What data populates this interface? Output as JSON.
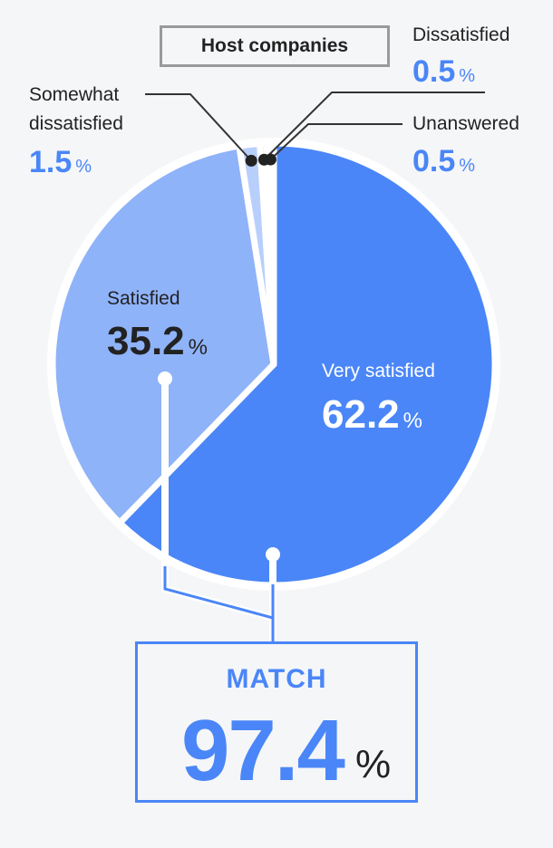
{
  "chart_data": {
    "type": "pie",
    "title": "Host companies",
    "slices": [
      {
        "label": "Very satisfied",
        "value": 62.2,
        "color": "#4a86f7"
      },
      {
        "label": "Satisfied",
        "value": 35.2,
        "color": "#8fb3f9"
      },
      {
        "label": "Somewhat dissatisfied",
        "value": 1.5,
        "color": "#b8cffb"
      },
      {
        "label": "Dissatisfied",
        "value": 0.5,
        "color": "#dfe9fd"
      },
      {
        "label": "Unanswered",
        "value": 0.5,
        "color": "#ffffff"
      }
    ],
    "percent_symbol": "%",
    "summary": {
      "label": "MATCH",
      "value": "97.4",
      "symbol": "%"
    }
  },
  "labels": {
    "very_satisfied": {
      "name": "Very satisfied",
      "pct": "62.2"
    },
    "satisfied": {
      "name": "Satisfied",
      "pct": "35.2"
    },
    "somewhat_line1": "Somewhat",
    "somewhat_line2": "dissatisfied",
    "somewhat_pct": "1.5",
    "dissatisfied": {
      "name": "Dissatisfied",
      "pct": "0.5"
    },
    "unanswered": {
      "name": "Unanswered",
      "pct": "0.5"
    }
  },
  "colors": {
    "accent": "#4a86f7",
    "text": "#222222",
    "leader": "#333333"
  }
}
